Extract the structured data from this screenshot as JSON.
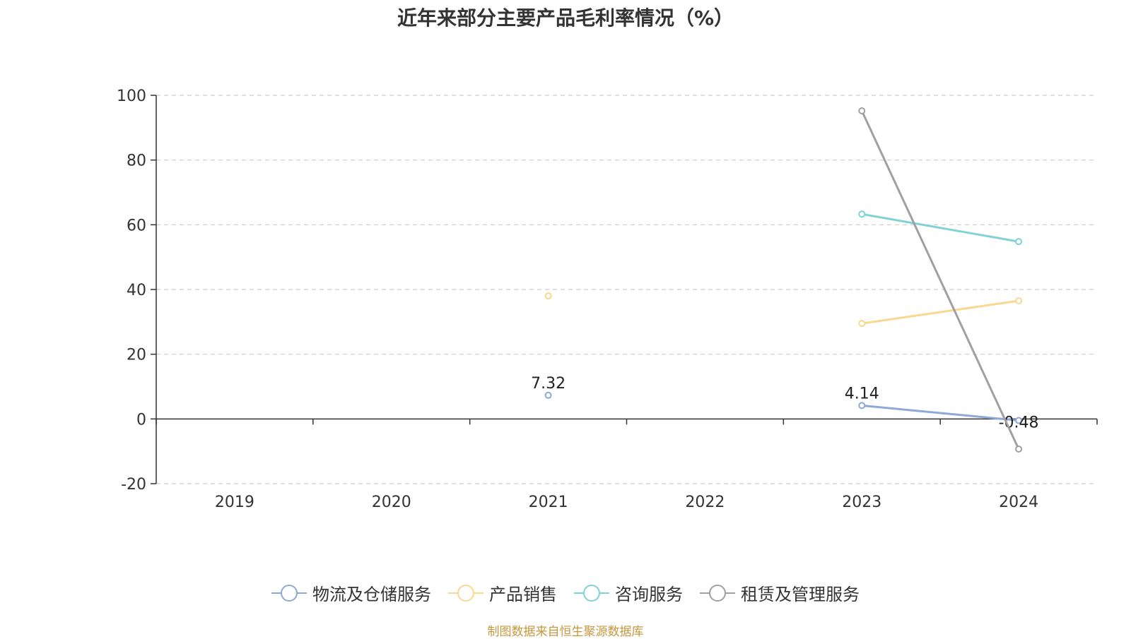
{
  "title": "近年来部分主要产品毛利率情况（%）",
  "source": "制图数据来自恒生聚源数据库",
  "chart_data": {
    "type": "line",
    "categories": [
      "2019",
      "2020",
      "2021",
      "2022",
      "2023",
      "2024"
    ],
    "ylim": [
      -20,
      100
    ],
    "yticks": [
      -20,
      0,
      20,
      40,
      60,
      80,
      100
    ],
    "grid": true,
    "legend_position": "bottom",
    "series": [
      {
        "name": "物流及仓储服务",
        "color": "#8fa8d8",
        "values": [
          null,
          null,
          7.32,
          null,
          4.14,
          -0.48
        ],
        "labels": [
          null,
          null,
          "7.32",
          null,
          "4.14",
          "-0.48"
        ]
      },
      {
        "name": "产品销售",
        "color": "#f9d88f",
        "values": [
          null,
          null,
          38,
          null,
          29.5,
          36.5
        ],
        "labels": [
          null,
          null,
          null,
          null,
          null,
          null
        ]
      },
      {
        "name": "咨询服务",
        "color": "#7fd3d6",
        "values": [
          null,
          null,
          null,
          null,
          63.3,
          54.8
        ],
        "labels": [
          null,
          null,
          null,
          null,
          null,
          null
        ]
      },
      {
        "name": "租赁及管理服务",
        "color": "#a0a0a0",
        "values": [
          null,
          null,
          null,
          null,
          95.2,
          -9.3
        ],
        "labels": [
          null,
          null,
          null,
          null,
          null,
          null
        ]
      }
    ]
  }
}
